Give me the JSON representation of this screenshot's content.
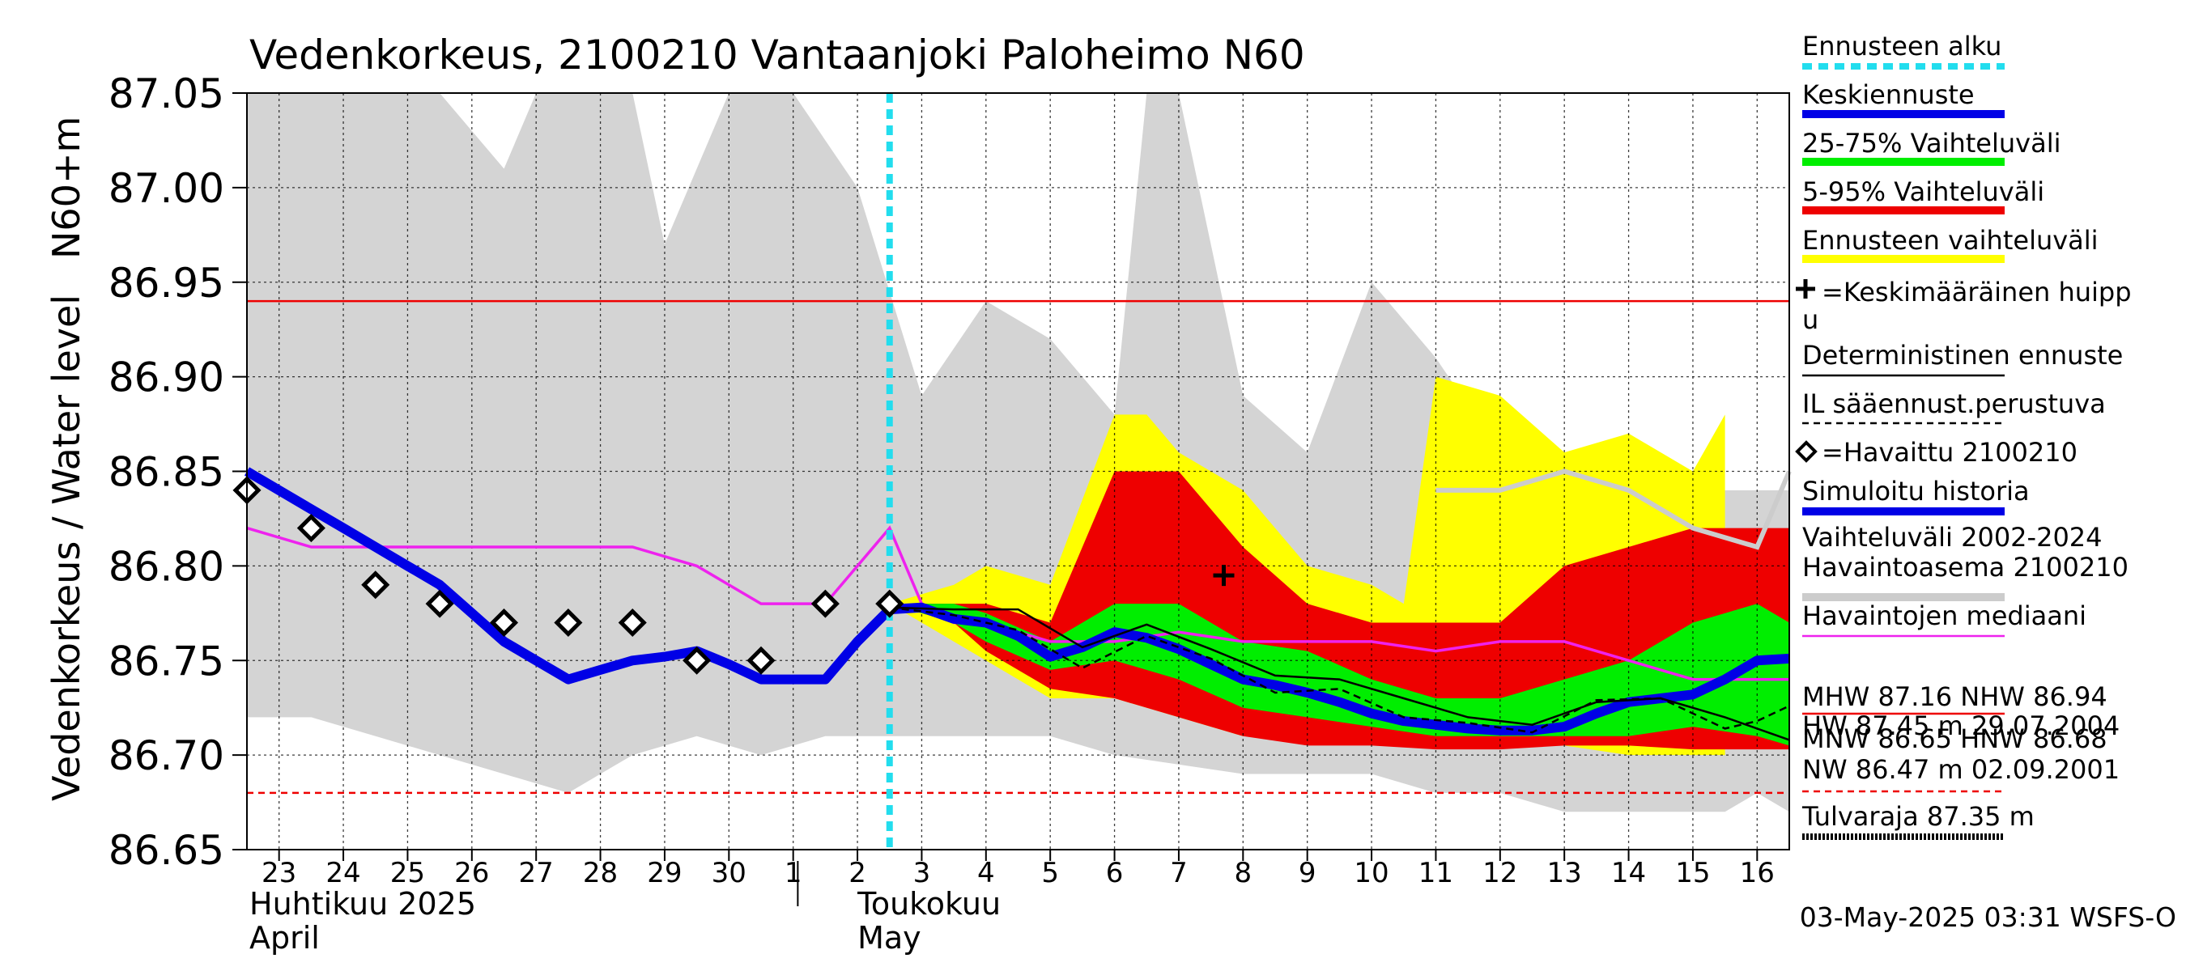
{
  "chart_data": {
    "type": "line",
    "title": "Vedenkorkeus, 2100210 Vantaanjoki Paloheimo N60",
    "ylabel": "Vedenkorkeus / Water level",
    "ylabel_unit": "N60+m",
    "ylim": [
      86.65,
      87.05
    ],
    "y_ticks": [
      86.65,
      86.7,
      86.75,
      86.8,
      86.85,
      86.9,
      86.95,
      87.0,
      87.05
    ],
    "x_range": [
      22.5,
      46.5
    ],
    "x_tick_labels": [
      "23",
      "24",
      "25",
      "26",
      "27",
      "28",
      "29",
      "30",
      "1",
      "2",
      "3",
      "4",
      "5",
      "6",
      "7",
      "8",
      "9",
      "10",
      "11",
      "12",
      "13",
      "14",
      "15",
      "16"
    ],
    "month_labels": [
      {
        "line1": "Huhtikuu  2025",
        "line2": "April"
      },
      {
        "line1": "Toukokuu",
        "line2": "May"
      }
    ],
    "timestamp": "03-May-2025 03:31 WSFS-O",
    "forecast_start": 32.5,
    "reference_lines": {
      "nhw": 86.94,
      "hnw": 86.68
    },
    "bands": {
      "history": {
        "upper": [
          [
            22.5,
            87.05
          ],
          [
            24.5,
            87.05
          ],
          [
            25.5,
            87.05
          ],
          [
            26.5,
            87.01
          ],
          [
            27,
            87.05
          ],
          [
            28.5,
            87.05
          ],
          [
            29,
            86.97
          ],
          [
            30,
            87.05
          ],
          [
            31,
            87.05
          ],
          [
            32,
            87.0
          ],
          [
            33,
            86.89
          ],
          [
            34,
            86.94
          ],
          [
            35,
            86.92
          ],
          [
            36,
            86.88
          ],
          [
            36.5,
            87.05
          ],
          [
            37,
            87.05
          ],
          [
            38,
            86.89
          ],
          [
            39,
            86.86
          ],
          [
            40,
            86.95
          ],
          [
            41,
            86.91
          ],
          [
            42,
            86.86
          ],
          [
            43,
            86.84
          ],
          [
            44,
            86.84
          ],
          [
            45,
            86.84
          ],
          [
            46,
            86.84
          ],
          [
            46.5,
            86.84
          ]
        ],
        "lower": [
          [
            22.5,
            86.72
          ],
          [
            23.5,
            86.72
          ],
          [
            24.5,
            86.71
          ],
          [
            25.5,
            86.7
          ],
          [
            26.5,
            86.69
          ],
          [
            27.5,
            86.68
          ],
          [
            28.5,
            86.7
          ],
          [
            29.5,
            86.71
          ],
          [
            30.5,
            86.7
          ],
          [
            31.5,
            86.71
          ],
          [
            33,
            86.71
          ],
          [
            34,
            86.71
          ],
          [
            35,
            86.71
          ],
          [
            36,
            86.7
          ],
          [
            38,
            86.69
          ],
          [
            39,
            86.69
          ],
          [
            40,
            86.69
          ],
          [
            41,
            86.68
          ],
          [
            42,
            86.68
          ],
          [
            43,
            86.67
          ],
          [
            44,
            86.67
          ],
          [
            45,
            86.67
          ],
          [
            45.5,
            86.67
          ],
          [
            46,
            86.68
          ],
          [
            46.5,
            86.67
          ]
        ]
      },
      "forecast_range": {
        "upper": [
          [
            32.5,
            86.78
          ],
          [
            33.5,
            86.79
          ],
          [
            34,
            86.8
          ],
          [
            35,
            86.79
          ],
          [
            36,
            86.88
          ],
          [
            36.5,
            86.88
          ],
          [
            37,
            86.86
          ],
          [
            38,
            86.84
          ],
          [
            39,
            86.8
          ],
          [
            40,
            86.79
          ],
          [
            40.5,
            86.78
          ],
          [
            41,
            86.9
          ],
          [
            42,
            86.89
          ],
          [
            43,
            86.86
          ],
          [
            44,
            86.87
          ],
          [
            45,
            86.85
          ],
          [
            45.5,
            86.88
          ]
        ],
        "lower": [
          [
            32.5,
            86.78
          ],
          [
            33.5,
            86.76
          ],
          [
            34,
            86.75
          ],
          [
            35,
            86.73
          ],
          [
            36,
            86.73
          ],
          [
            37,
            86.72
          ],
          [
            38,
            86.71
          ],
          [
            39,
            86.71
          ],
          [
            40,
            86.705
          ],
          [
            41,
            86.705
          ],
          [
            42,
            86.705
          ],
          [
            43,
            86.705
          ],
          [
            44,
            86.7
          ],
          [
            45,
            86.7
          ],
          [
            45.5,
            86.7
          ]
        ]
      },
      "p5_95": {
        "upper": [
          [
            32.5,
            86.78
          ],
          [
            33.5,
            86.78
          ],
          [
            34,
            86.78
          ],
          [
            35,
            86.77
          ],
          [
            36,
            86.85
          ],
          [
            37,
            86.85
          ],
          [
            38,
            86.81
          ],
          [
            39,
            86.78
          ],
          [
            40,
            86.77
          ],
          [
            41,
            86.77
          ],
          [
            42,
            86.77
          ],
          [
            43,
            86.8
          ],
          [
            44,
            86.81
          ],
          [
            45,
            86.82
          ],
          [
            46.5,
            86.82
          ]
        ],
        "lower": [
          [
            32.5,
            86.78
          ],
          [
            33.5,
            86.77
          ],
          [
            34,
            86.755
          ],
          [
            35,
            86.735
          ],
          [
            36,
            86.73
          ],
          [
            37,
            86.72
          ],
          [
            38,
            86.71
          ],
          [
            39,
            86.705
          ],
          [
            40,
            86.705
          ],
          [
            41,
            86.703
          ],
          [
            42,
            86.703
          ],
          [
            43,
            86.705
          ],
          [
            44,
            86.705
          ],
          [
            45,
            86.703
          ],
          [
            46.5,
            86.703
          ]
        ]
      },
      "p25_75": {
        "upper": [
          [
            32.5,
            86.78
          ],
          [
            33.5,
            86.78
          ],
          [
            34,
            86.775
          ],
          [
            35,
            86.76
          ],
          [
            36,
            86.78
          ],
          [
            37,
            86.78
          ],
          [
            38,
            86.76
          ],
          [
            39,
            86.755
          ],
          [
            40,
            86.74
          ],
          [
            41,
            86.73
          ],
          [
            42,
            86.73
          ],
          [
            43,
            86.74
          ],
          [
            44,
            86.75
          ],
          [
            45,
            86.77
          ],
          [
            46,
            86.78
          ],
          [
            46.5,
            86.77
          ]
        ],
        "lower": [
          [
            32.5,
            86.78
          ],
          [
            33.5,
            86.77
          ],
          [
            34,
            86.76
          ],
          [
            35,
            86.745
          ],
          [
            36,
            86.75
          ],
          [
            37,
            86.74
          ],
          [
            38,
            86.725
          ],
          [
            39,
            86.72
          ],
          [
            40,
            86.715
          ],
          [
            41,
            86.71
          ],
          [
            42,
            86.71
          ],
          [
            43,
            86.71
          ],
          [
            44,
            86.71
          ],
          [
            45,
            86.715
          ],
          [
            46,
            86.71
          ],
          [
            46.5,
            86.705
          ]
        ]
      }
    },
    "series": [
      {
        "kind": "simulated_history",
        "color": "#0000e6",
        "points": [
          [
            22.5,
            86.85
          ],
          [
            23,
            86.84
          ],
          [
            23.5,
            86.83
          ],
          [
            24,
            86.82
          ],
          [
            24.5,
            86.81
          ],
          [
            25,
            86.8
          ],
          [
            25.5,
            86.79
          ],
          [
            26,
            86.775
          ],
          [
            26.5,
            86.76
          ],
          [
            27,
            86.75
          ],
          [
            27.5,
            86.74
          ],
          [
            28,
            86.745
          ],
          [
            28.5,
            86.75
          ],
          [
            29,
            86.752
          ],
          [
            29.5,
            86.755
          ],
          [
            30,
            86.748
          ],
          [
            30.5,
            86.74
          ],
          [
            31,
            86.74
          ],
          [
            31.5,
            86.74
          ],
          [
            32,
            86.76
          ],
          [
            32.5,
            86.777
          ],
          [
            33,
            86.778
          ],
          [
            33.5,
            86.772
          ],
          [
            34,
            86.77
          ],
          [
            34.5,
            86.763
          ],
          [
            35,
            86.752
          ],
          [
            35.5,
            86.757
          ],
          [
            36,
            86.765
          ],
          [
            36.5,
            86.762
          ],
          [
            37,
            86.756
          ],
          [
            37.5,
            86.748
          ],
          [
            38,
            86.74
          ],
          [
            38.5,
            86.737
          ],
          [
            39,
            86.733
          ],
          [
            39.5,
            86.728
          ],
          [
            40,
            86.722
          ],
          [
            40.5,
            86.718
          ],
          [
            41,
            86.716
          ],
          [
            41.5,
            86.714
          ],
          [
            42,
            86.713
          ],
          [
            42.5,
            86.713
          ],
          [
            43,
            86.715
          ],
          [
            43.5,
            86.722
          ],
          [
            44,
            86.728
          ],
          [
            44.5,
            86.73
          ],
          [
            45,
            86.732
          ],
          [
            45.5,
            86.74
          ],
          [
            46,
            86.75
          ],
          [
            46.5,
            86.751
          ]
        ]
      },
      {
        "kind": "median",
        "color": "#ee22ee",
        "points": [
          [
            22.5,
            86.82
          ],
          [
            23.5,
            86.81
          ],
          [
            24.5,
            86.81
          ],
          [
            25.5,
            86.81
          ],
          [
            26.5,
            86.81
          ],
          [
            27.5,
            86.81
          ],
          [
            28.5,
            86.81
          ],
          [
            29.5,
            86.8
          ],
          [
            30.5,
            86.78
          ],
          [
            31.5,
            86.78
          ],
          [
            32.5,
            86.82
          ],
          [
            33,
            86.78
          ],
          [
            33.5,
            86.77
          ],
          [
            34,
            86.77
          ],
          [
            35,
            86.76
          ],
          [
            36,
            86.76
          ],
          [
            37,
            86.765
          ],
          [
            38,
            86.76
          ],
          [
            39,
            86.76
          ],
          [
            40,
            86.76
          ],
          [
            41,
            86.755
          ],
          [
            42,
            86.76
          ],
          [
            43,
            86.76
          ],
          [
            44,
            86.75
          ],
          [
            45,
            86.74
          ],
          [
            46,
            86.74
          ],
          [
            46.5,
            86.74
          ]
        ]
      },
      {
        "kind": "simulated_range_line",
        "color": "#cccccc",
        "points": [
          [
            41,
            86.84
          ],
          [
            42,
            86.84
          ],
          [
            43,
            86.85
          ],
          [
            44,
            86.84
          ],
          [
            45,
            86.82
          ],
          [
            46,
            86.81
          ],
          [
            46.5,
            86.85
          ]
        ]
      },
      {
        "kind": "deterministic",
        "color": "#000000",
        "points": [
          [
            32.5,
            86.778
          ],
          [
            33.5,
            86.777
          ],
          [
            34.5,
            86.777
          ],
          [
            35.5,
            86.757
          ],
          [
            36.5,
            86.769
          ],
          [
            37.5,
            86.756
          ],
          [
            38.5,
            86.742
          ],
          [
            39.5,
            86.74
          ],
          [
            40.5,
            86.73
          ],
          [
            41.5,
            86.72
          ],
          [
            42.5,
            86.716
          ],
          [
            43.5,
            86.728
          ],
          [
            44.5,
            86.73
          ],
          [
            45.5,
            86.72
          ],
          [
            46.5,
            86.708
          ]
        ]
      },
      {
        "kind": "il_forecast",
        "color": "#000000",
        "points": [
          [
            32.5,
            86.778
          ],
          [
            33.5,
            86.774
          ],
          [
            34.5,
            86.766
          ],
          [
            35.5,
            86.746
          ],
          [
            36.5,
            86.763
          ],
          [
            37.5,
            86.751
          ],
          [
            38.5,
            86.733
          ],
          [
            39.5,
            86.735
          ],
          [
            40.5,
            86.72
          ],
          [
            41.5,
            86.717
          ],
          [
            42.5,
            86.712
          ],
          [
            43.5,
            86.729
          ],
          [
            44.5,
            86.73
          ],
          [
            45.5,
            86.714
          ],
          [
            46,
            86.718
          ],
          [
            46.5,
            86.726
          ]
        ]
      }
    ],
    "observed": [
      [
        22.5,
        86.84
      ],
      [
        23.5,
        86.82
      ],
      [
        24.5,
        86.79
      ],
      [
        25.5,
        86.78
      ],
      [
        26.5,
        86.77
      ],
      [
        27.5,
        86.77
      ],
      [
        28.5,
        86.77
      ],
      [
        29.5,
        86.75
      ],
      [
        30.5,
        86.75
      ],
      [
        31.5,
        86.78
      ],
      [
        32.5,
        86.78
      ]
    ],
    "mean_peak": [
      37.7,
      86.795
    ],
    "legend": [
      {
        "label": "Ennusteen alku",
        "color": "#22ddee",
        "style": "dotted-thick"
      },
      {
        "label": "Keskiennuste",
        "color": "#0000e6",
        "style": "thick"
      },
      {
        "label": "25-75% Vaihteluväli",
        "color": "#00ee00",
        "style": "thick"
      },
      {
        "label": "5-95% Vaihteluväli",
        "color": "#ee0000",
        "style": "thick"
      },
      {
        "label": "Ennusteen vaihteluväli",
        "color": "#ffff00",
        "style": "thick"
      },
      {
        "label": "=Keskimääräinen huipp",
        "label2": "u",
        "color": "#000000",
        "style": "plus"
      },
      {
        "label": "Deterministinen ennuste",
        "color": "#000000",
        "style": "thin"
      },
      {
        "label": "IL sääennust.perustuva",
        "color": "#000000",
        "style": "dashed"
      },
      {
        "label": "=Havaittu 2100210",
        "color": "#000000",
        "style": "diamond"
      },
      {
        "label": "Simuloitu historia",
        "color": "#0000e6",
        "style": "thick"
      },
      {
        "label": "Vaihteluväli 2002-2024",
        "label2": " Havaintoasema 2100210",
        "color": "#cccccc",
        "style": "thick"
      },
      {
        "label": "Havaintojen mediaani",
        "color": "#ee22ee",
        "style": "thin"
      },
      {
        "label": "MHW  87.16 NHW  86.94",
        "label2": "HW  87.45 m 29.07.2004",
        "color": "#ee0000",
        "style": "thin"
      },
      {
        "label": "MNW  86.65 HNW  86.68",
        "label2": "NW  86.47 m 02.09.2001",
        "color": "#ee0000",
        "style": "dashed"
      },
      {
        "label": "Tulvaraja 87.35 m",
        "color": "#000000",
        "style": "dotted-thick"
      }
    ]
  }
}
